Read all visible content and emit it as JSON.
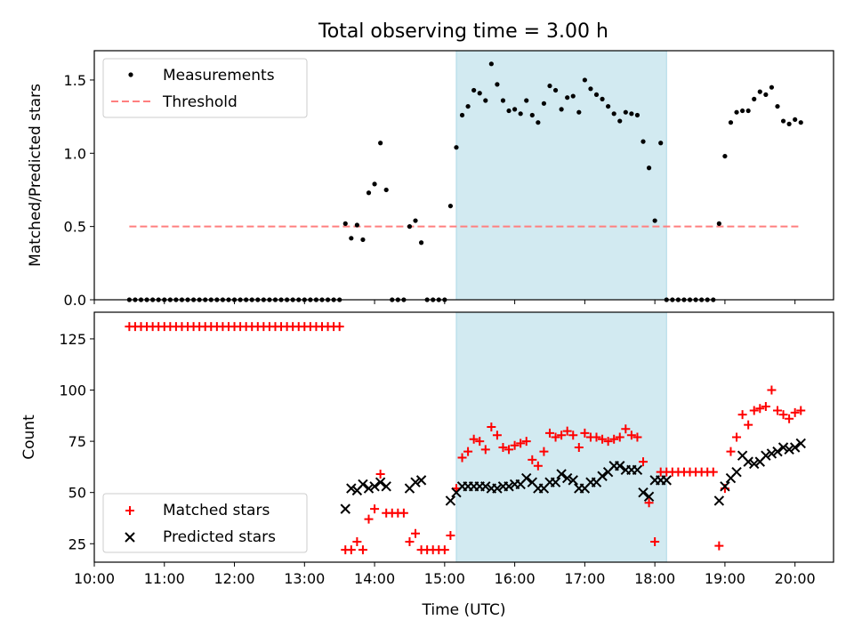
{
  "title": "Total observing time = 3.00 h",
  "colors": {
    "measurement": "#000000",
    "threshold": "#ff7f7f",
    "matched": "#ff0000",
    "predicted": "#000000",
    "span_fill": "#add8e6"
  },
  "chart_data": [
    {
      "type": "scatter",
      "title": "Total observing time = 3.00 h",
      "xlabel": "",
      "ylabel": "Matched/Predicted stars",
      "xlim": [
        10.0,
        20.55
      ],
      "ylim": [
        0,
        1.7
      ],
      "yticks": [
        "0.0",
        "0.5",
        "1.0",
        "1.5"
      ],
      "legend_position": "top-left",
      "shaded_span": {
        "from": "15:10",
        "to": "18:10"
      },
      "threshold": {
        "name": "Threshold",
        "value": 0.5,
        "from": "10:30",
        "to": "20:05",
        "style": "dashed"
      },
      "series": [
        {
          "name": "Measurements",
          "x": [
            "10:30",
            "10:35",
            "10:40",
            "10:45",
            "10:50",
            "10:55",
            "11:00",
            "11:05",
            "11:10",
            "11:15",
            "11:20",
            "11:25",
            "11:30",
            "11:35",
            "11:40",
            "11:45",
            "11:50",
            "11:55",
            "12:00",
            "12:05",
            "12:10",
            "12:15",
            "12:20",
            "12:25",
            "12:30",
            "12:35",
            "12:40",
            "12:45",
            "12:50",
            "12:55",
            "13:00",
            "13:05",
            "13:10",
            "13:15",
            "13:20",
            "13:25",
            "13:30",
            "13:35",
            "13:40",
            "13:45",
            "13:50",
            "13:55",
            "14:00",
            "14:05",
            "14:10",
            "14:15",
            "14:20",
            "14:25",
            "14:30",
            "14:35",
            "14:40",
            "14:45",
            "14:50",
            "14:55",
            "15:00",
            "15:05",
            "15:10",
            "15:15",
            "15:20",
            "15:25",
            "15:30",
            "15:35",
            "15:40",
            "15:45",
            "15:50",
            "15:55",
            "16:00",
            "16:05",
            "16:10",
            "16:15",
            "16:20",
            "16:25",
            "16:30",
            "16:35",
            "16:40",
            "16:45",
            "16:50",
            "16:55",
            "17:00",
            "17:05",
            "17:10",
            "17:15",
            "17:20",
            "17:25",
            "17:30",
            "17:35",
            "17:40",
            "17:45",
            "17:50",
            "17:55",
            "18:00",
            "18:05",
            "18:10",
            "18:15",
            "18:20",
            "18:25",
            "18:30",
            "18:35",
            "18:40",
            "18:45",
            "18:50",
            "18:55",
            "19:00",
            "19:05",
            "19:10",
            "19:15",
            "19:20",
            "19:25",
            "19:30",
            "19:35",
            "19:40",
            "19:45",
            "19:50",
            "19:55",
            "20:00",
            "20:05"
          ],
          "y": [
            0,
            0,
            0,
            0,
            0,
            0,
            0,
            0,
            0,
            0,
            0,
            0,
            0,
            0,
            0,
            0,
            0,
            0,
            0,
            0,
            0,
            0,
            0,
            0,
            0,
            0,
            0,
            0,
            0,
            0,
            0,
            0,
            0,
            0,
            0,
            0,
            0,
            0.52,
            0.42,
            0.51,
            0.41,
            0.73,
            0.79,
            1.07,
            0.75,
            0,
            0,
            0,
            0.5,
            0.54,
            0.39,
            0,
            0,
            0,
            0,
            0.64,
            1.04,
            1.26,
            1.32,
            1.43,
            1.41,
            1.36,
            1.61,
            1.47,
            1.36,
            1.29,
            1.3,
            1.27,
            1.36,
            1.26,
            1.21,
            1.34,
            1.46,
            1.43,
            1.3,
            1.38,
            1.39,
            1.28,
            1.5,
            1.44,
            1.4,
            1.37,
            1.32,
            1.27,
            1.22,
            1.28,
            1.27,
            1.26,
            1.08,
            0.9,
            0.54,
            1.07,
            0,
            0,
            0,
            0,
            0,
            0,
            0,
            0,
            0,
            0.52,
            0.98,
            1.21,
            1.28,
            1.29,
            1.29,
            1.37,
            1.42,
            1.4,
            1.45,
            1.32,
            1.22,
            1.2,
            1.23,
            1.21
          ]
        }
      ]
    },
    {
      "type": "scatter",
      "title": "",
      "xlabel": "Time (UTC)",
      "ylabel": "Count",
      "xlim": [
        10.0,
        20.55
      ],
      "ylim": [
        16,
        138
      ],
      "yticks": [
        "25",
        "50",
        "75",
        "100",
        "125"
      ],
      "xticks": [
        "10:00",
        "11:00",
        "12:00",
        "13:00",
        "14:00",
        "15:00",
        "16:00",
        "17:00",
        "18:00",
        "19:00",
        "20:00"
      ],
      "legend_position": "bottom-left",
      "shaded_span": {
        "from": "15:10",
        "to": "18:10"
      },
      "series": [
        {
          "name": "Matched stars",
          "marker": "plus",
          "x": [
            "10:30",
            "10:35",
            "10:40",
            "10:45",
            "10:50",
            "10:55",
            "11:00",
            "11:05",
            "11:10",
            "11:15",
            "11:20",
            "11:25",
            "11:30",
            "11:35",
            "11:40",
            "11:45",
            "11:50",
            "11:55",
            "12:00",
            "12:05",
            "12:10",
            "12:15",
            "12:20",
            "12:25",
            "12:30",
            "12:35",
            "12:40",
            "12:45",
            "12:50",
            "12:55",
            "13:00",
            "13:05",
            "13:10",
            "13:15",
            "13:20",
            "13:25",
            "13:30",
            "13:35",
            "13:40",
            "13:45",
            "13:50",
            "13:55",
            "14:00",
            "14:05",
            "14:10",
            "14:15",
            "14:20",
            "14:25",
            "14:30",
            "14:35",
            "14:40",
            "14:45",
            "14:50",
            "14:55",
            "15:00",
            "15:05",
            "15:10",
            "15:15",
            "15:20",
            "15:25",
            "15:30",
            "15:35",
            "15:40",
            "15:45",
            "15:50",
            "15:55",
            "16:00",
            "16:05",
            "16:10",
            "16:15",
            "16:20",
            "16:25",
            "16:30",
            "16:35",
            "16:40",
            "16:45",
            "16:50",
            "16:55",
            "17:00",
            "17:05",
            "17:10",
            "17:15",
            "17:20",
            "17:25",
            "17:30",
            "17:35",
            "17:40",
            "17:45",
            "17:50",
            "17:55",
            "18:00",
            "18:05",
            "18:10",
            "18:15",
            "18:20",
            "18:25",
            "18:30",
            "18:35",
            "18:40",
            "18:45",
            "18:50",
            "18:55",
            "19:00",
            "19:05",
            "19:10",
            "19:15",
            "19:20",
            "19:25",
            "19:30",
            "19:35",
            "19:40",
            "19:45",
            "19:50",
            "19:55",
            "20:00",
            "20:05"
          ],
          "y": [
            131,
            131,
            131,
            131,
            131,
            131,
            131,
            131,
            131,
            131,
            131,
            131,
            131,
            131,
            131,
            131,
            131,
            131,
            131,
            131,
            131,
            131,
            131,
            131,
            131,
            131,
            131,
            131,
            131,
            131,
            131,
            131,
            131,
            131,
            131,
            131,
            131,
            22,
            22,
            26,
            22,
            37,
            42,
            59,
            40,
            40,
            40,
            40,
            26,
            30,
            22,
            22,
            22,
            22,
            22,
            29,
            52,
            67,
            70,
            76,
            75,
            71,
            82,
            78,
            72,
            71,
            73,
            74,
            75,
            66,
            63,
            70,
            79,
            77,
            78,
            80,
            78,
            72,
            79,
            77,
            77,
            76,
            75,
            76,
            77,
            81,
            78,
            77,
            65,
            45,
            26,
            60,
            60,
            60,
            60,
            60,
            60,
            60,
            60,
            60,
            60,
            24,
            52,
            70,
            77,
            88,
            83,
            90,
            91,
            92,
            100,
            90,
            88,
            86,
            89,
            90
          ]
        },
        {
          "name": "Predicted stars",
          "marker": "x",
          "x": [
            "13:35",
            "13:40",
            "13:45",
            "13:50",
            "13:55",
            "14:00",
            "14:05",
            "14:10",
            "14:30",
            "14:35",
            "14:40",
            "15:05",
            "15:10",
            "15:15",
            "15:20",
            "15:25",
            "15:30",
            "15:35",
            "15:40",
            "15:45",
            "15:50",
            "15:55",
            "16:00",
            "16:05",
            "16:10",
            "16:15",
            "16:20",
            "16:25",
            "16:30",
            "16:35",
            "16:40",
            "16:45",
            "16:50",
            "16:55",
            "17:00",
            "17:05",
            "17:10",
            "17:15",
            "17:20",
            "17:25",
            "17:30",
            "17:35",
            "17:40",
            "17:45",
            "17:50",
            "17:55",
            "18:00",
            "18:05",
            "18:10",
            "18:55",
            "19:00",
            "19:05",
            "19:10",
            "19:15",
            "19:20",
            "19:25",
            "19:30",
            "19:35",
            "19:40",
            "19:45",
            "19:50",
            "19:55",
            "20:00",
            "20:05"
          ],
          "y": [
            42,
            52,
            51,
            54,
            52,
            53,
            55,
            53,
            52,
            55,
            56,
            46,
            50,
            53,
            53,
            53,
            53,
            53,
            52,
            52,
            53,
            53,
            54,
            54,
            57,
            55,
            52,
            52,
            55,
            55,
            59,
            57,
            56,
            52,
            52,
            55,
            55,
            58,
            60,
            63,
            63,
            61,
            61,
            61,
            50,
            48,
            56,
            56,
            56,
            46,
            53,
            57,
            60,
            68,
            65,
            64,
            65,
            68,
            69,
            70,
            72,
            71,
            72,
            74
          ]
        }
      ]
    }
  ]
}
